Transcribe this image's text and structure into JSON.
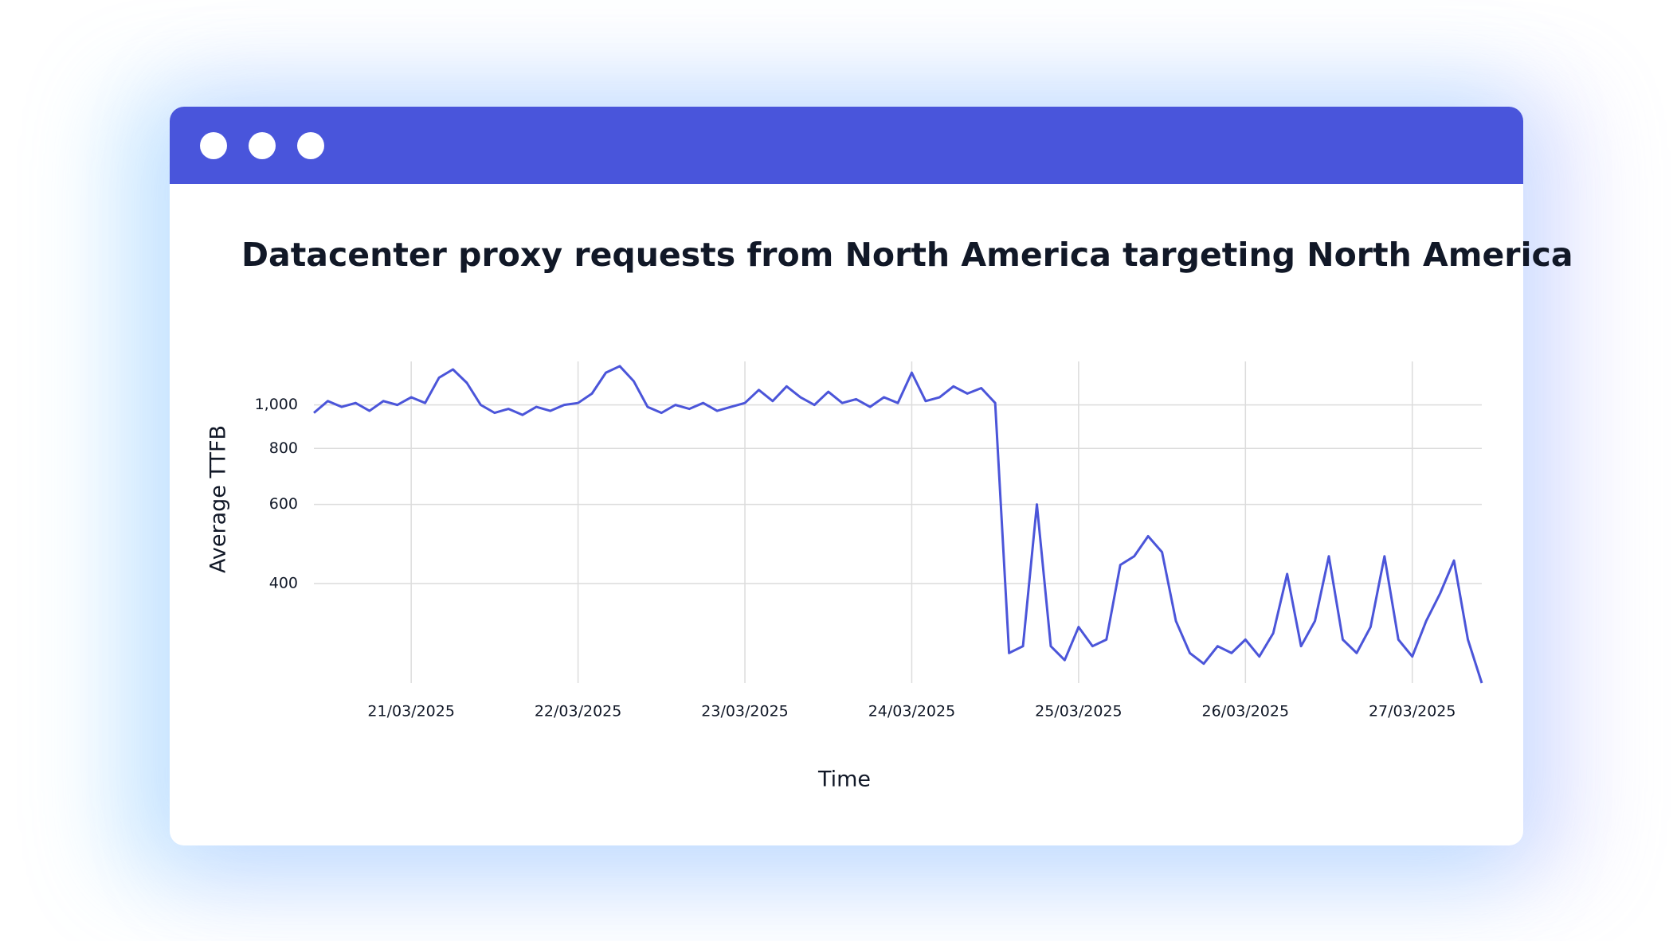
{
  "chart_data": {
    "type": "line",
    "title": "Datacenter proxy requests from North America targeting North America",
    "x_label": "Time",
    "y_label": "Average TTFB",
    "color": "#4b55d9",
    "yscale": "log",
    "grid": true,
    "xlim": [
      "2025-03-20T10:00",
      "2025-03-27T10:00"
    ],
    "ylim": [
      240,
      1250
    ],
    "xticks": [
      {
        "value": "2025-03-21",
        "label": "21/03/2025"
      },
      {
        "value": "2025-03-22",
        "label": "22/03/2025"
      },
      {
        "value": "2025-03-23",
        "label": "23/03/2025"
      },
      {
        "value": "2025-03-24",
        "label": "24/03/2025"
      },
      {
        "value": "2025-03-25",
        "label": "25/03/2025"
      },
      {
        "value": "2025-03-26",
        "label": "26/03/2025"
      },
      {
        "value": "2025-03-27",
        "label": "27/03/2025"
      }
    ],
    "yticks": [
      400,
      600,
      800,
      {
        "value": 1000,
        "label": "1,000"
      }
    ],
    "x": [
      "2025-03-20T10:00",
      "2025-03-20T12:00",
      "2025-03-20T14:00",
      "2025-03-20T16:00",
      "2025-03-20T18:00",
      "2025-03-20T20:00",
      "2025-03-20T22:00",
      "2025-03-21T00:00",
      "2025-03-21T02:00",
      "2025-03-21T04:00",
      "2025-03-21T06:00",
      "2025-03-21T08:00",
      "2025-03-21T10:00",
      "2025-03-21T12:00",
      "2025-03-21T14:00",
      "2025-03-21T16:00",
      "2025-03-21T18:00",
      "2025-03-21T20:00",
      "2025-03-21T22:00",
      "2025-03-22T00:00",
      "2025-03-22T02:00",
      "2025-03-22T04:00",
      "2025-03-22T06:00",
      "2025-03-22T08:00",
      "2025-03-22T10:00",
      "2025-03-22T12:00",
      "2025-03-22T14:00",
      "2025-03-22T16:00",
      "2025-03-22T18:00",
      "2025-03-22T20:00",
      "2025-03-22T22:00",
      "2025-03-23T00:00",
      "2025-03-23T02:00",
      "2025-03-23T04:00",
      "2025-03-23T06:00",
      "2025-03-23T08:00",
      "2025-03-23T10:00",
      "2025-03-23T12:00",
      "2025-03-23T14:00",
      "2025-03-23T16:00",
      "2025-03-23T18:00",
      "2025-03-23T20:00",
      "2025-03-23T22:00",
      "2025-03-24T00:00",
      "2025-03-24T02:00",
      "2025-03-24T04:00",
      "2025-03-24T06:00",
      "2025-03-24T08:00",
      "2025-03-24T10:00",
      "2025-03-24T12:00",
      "2025-03-24T14:00",
      "2025-03-24T16:00",
      "2025-03-24T18:00",
      "2025-03-24T20:00",
      "2025-03-24T22:00",
      "2025-03-25T00:00",
      "2025-03-25T02:00",
      "2025-03-25T04:00",
      "2025-03-25T06:00",
      "2025-03-25T08:00",
      "2025-03-25T10:00",
      "2025-03-25T12:00",
      "2025-03-25T14:00",
      "2025-03-25T16:00",
      "2025-03-25T18:00",
      "2025-03-25T20:00",
      "2025-03-25T22:00",
      "2025-03-26T00:00",
      "2025-03-26T02:00",
      "2025-03-26T04:00",
      "2025-03-26T06:00",
      "2025-03-26T08:00",
      "2025-03-26T10:00",
      "2025-03-26T12:00",
      "2025-03-26T14:00",
      "2025-03-26T16:00",
      "2025-03-26T18:00",
      "2025-03-26T20:00",
      "2025-03-26T22:00",
      "2025-03-27T00:00",
      "2025-03-27T02:00",
      "2025-03-27T04:00",
      "2025-03-27T06:00",
      "2025-03-27T08:00",
      "2025-03-27T10:00"
    ],
    "values": [
      960,
      1020,
      990,
      1010,
      970,
      1020,
      1000,
      1040,
      1010,
      1150,
      1200,
      1120,
      1000,
      960,
      980,
      950,
      990,
      970,
      1000,
      1010,
      1060,
      1180,
      1220,
      1130,
      990,
      960,
      1000,
      980,
      1010,
      970,
      990,
      1010,
      1080,
      1020,
      1100,
      1040,
      1000,
      1070,
      1010,
      1030,
      990,
      1040,
      1010,
      1180,
      1020,
      1040,
      1100,
      1060,
      1090,
      1010,
      280,
      290,
      600,
      290,
      270,
      320,
      290,
      300,
      440,
      460,
      510,
      470,
      330,
      280,
      265,
      290,
      280,
      300,
      275,
      310,
      420,
      290,
      330,
      460,
      300,
      280,
      320,
      460,
      300,
      275,
      330,
      380,
      450,
      300,
      240
    ]
  }
}
